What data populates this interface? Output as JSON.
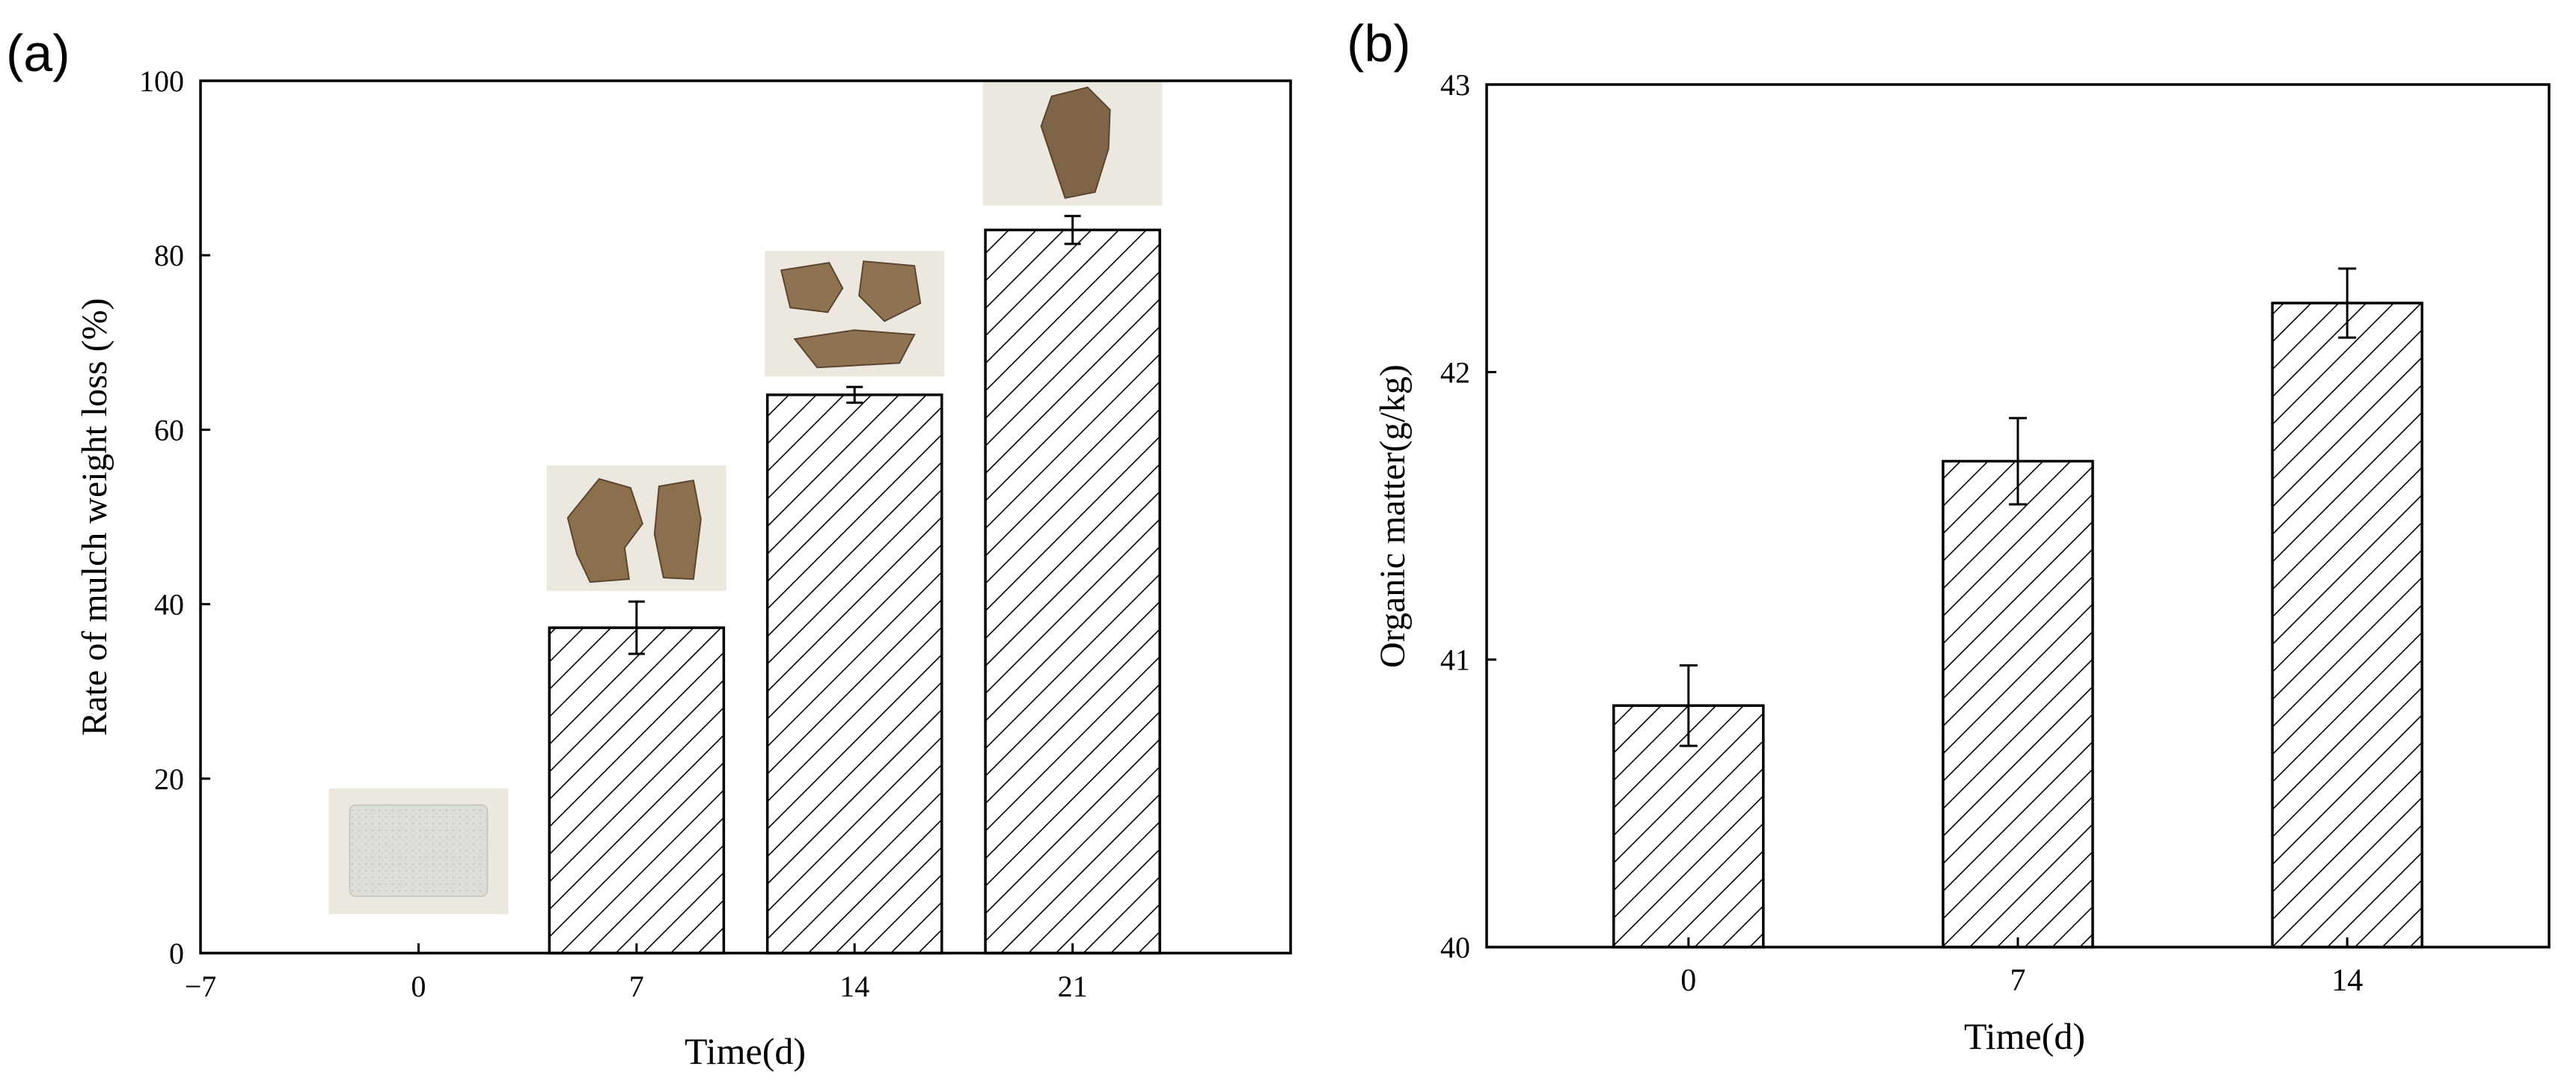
{
  "panels": [
    {
      "label": "(a)"
    },
    {
      "label": "(b)"
    }
  ],
  "chart_data": [
    {
      "type": "bar",
      "panel": "(a)",
      "xlabel": "Time(d)",
      "ylabel": "Rate of mulch weight loss (%)",
      "xlim": [
        -7,
        28
      ],
      "ylim": [
        0,
        100
      ],
      "xticks": [
        -7,
        0,
        7,
        14,
        21
      ],
      "yticks": [
        0,
        20,
        40,
        60,
        80,
        100
      ],
      "x": [
        0,
        7,
        14,
        21
      ],
      "values": [
        0,
        37.3,
        64.0,
        82.9
      ],
      "errors": [
        0,
        3.0,
        0.9,
        1.6
      ],
      "bar_width": 5.6,
      "hatch": "diagonal",
      "grid": false,
      "inset_photos": [
        {
          "x": 0,
          "name": "photo-mulch-day-0",
          "tone": "#ddded7"
        },
        {
          "x": 7,
          "name": "photo-mulch-day-7",
          "tone": "#8c6f4c"
        },
        {
          "x": 14,
          "name": "photo-mulch-day-14",
          "tone": "#8f7252"
        },
        {
          "x": 21,
          "name": "photo-mulch-day-21",
          "tone": "#7f6448"
        }
      ]
    },
    {
      "type": "bar",
      "panel": "(b)",
      "xlabel": "Time(d)",
      "ylabel": "Organic matter(g/kg)",
      "ylim": [
        40,
        43
      ],
      "yticks": [
        40,
        41,
        42,
        43
      ],
      "categories": [
        "0",
        "7",
        "14"
      ],
      "values": [
        40.84,
        41.69,
        42.24
      ],
      "errors": [
        0.14,
        0.15,
        0.12
      ],
      "hatch": "diagonal",
      "grid": false
    }
  ],
  "colors": {
    "axis": "#000000",
    "bar_fill": "#ffffff",
    "hatch": "#000000",
    "photo_background": "#ece8e0"
  }
}
